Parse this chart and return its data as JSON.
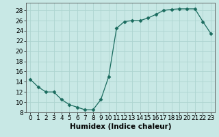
{
  "x": [
    0,
    1,
    2,
    3,
    4,
    5,
    6,
    7,
    8,
    9,
    10,
    11,
    12,
    13,
    14,
    15,
    16,
    17,
    18,
    19,
    20,
    21,
    22,
    23
  ],
  "y": [
    14.5,
    13,
    12,
    12,
    10.5,
    9.5,
    9,
    8.5,
    8.5,
    10.5,
    15,
    24.5,
    25.8,
    26,
    26,
    26.5,
    27.2,
    28,
    28.2,
    28.3,
    28.3,
    28.3,
    25.8,
    23.5
  ],
  "xlabel": "Humidex (Indice chaleur)",
  "xlim": [
    -0.5,
    23.5
  ],
  "ylim": [
    8,
    29.5
  ],
  "yticks": [
    8,
    10,
    12,
    14,
    16,
    18,
    20,
    22,
    24,
    26,
    28
  ],
  "xticks": [
    0,
    1,
    2,
    3,
    4,
    5,
    6,
    7,
    8,
    9,
    10,
    11,
    12,
    13,
    14,
    15,
    16,
    17,
    18,
    19,
    20,
    21,
    22,
    23
  ],
  "line_color": "#1a6b5e",
  "marker": "D",
  "marker_size": 2.5,
  "bg_color": "#c8e8e5",
  "grid_color": "#add4d0",
  "xlabel_fontsize": 7.5,
  "tick_fontsize": 6.5
}
